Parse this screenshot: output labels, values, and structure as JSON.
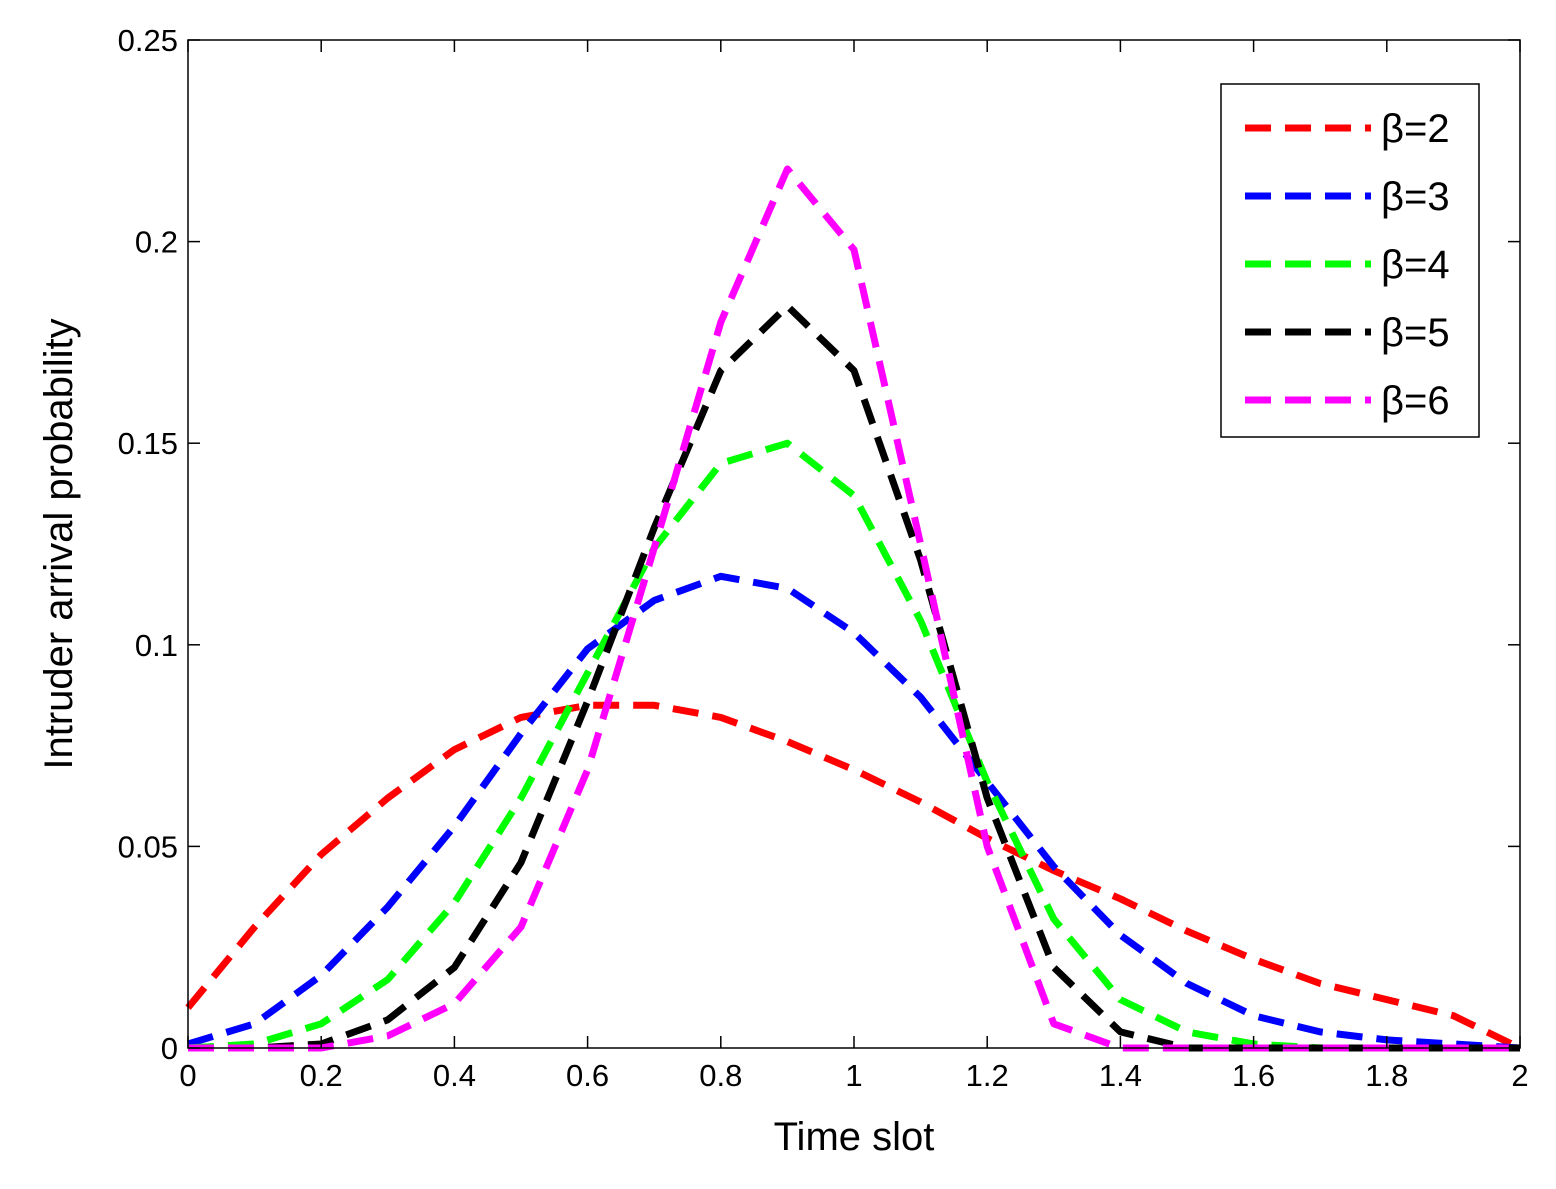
{
  "chart_data": {
    "type": "line",
    "title": "",
    "xlabel": "Time slot",
    "ylabel": "Intruder arrival probability",
    "xlim": [
      0,
      2
    ],
    "ylim": [
      0,
      0.25
    ],
    "xticks": [
      0,
      0.2,
      0.4,
      0.6,
      0.8,
      1,
      1.2,
      1.4,
      1.6,
      1.8,
      2
    ],
    "xtick_labels": [
      "0",
      "0.2",
      "0.4",
      "0.6",
      "0.8",
      "1",
      "1.2",
      "1.4",
      "1.6",
      "1.8",
      "2"
    ],
    "yticks": [
      0,
      0.05,
      0.1,
      0.15,
      0.2,
      0.25
    ],
    "ytick_labels": [
      "0",
      "0.05",
      "0.1",
      "0.15",
      "0.2",
      "0.25"
    ],
    "grid": false,
    "legend_position": "top-right",
    "line_style": "dashed",
    "x": [
      0,
      0.1,
      0.2,
      0.3,
      0.4,
      0.5,
      0.6,
      0.7,
      0.8,
      0.9,
      1.0,
      1.1,
      1.2,
      1.3,
      1.4,
      1.5,
      1.6,
      1.7,
      1.8,
      1.9,
      2.0
    ],
    "series": [
      {
        "name": "β=2",
        "color": "#ff0000",
        "values": [
          0.01,
          0.03,
          0.048,
          0.062,
          0.074,
          0.082,
          0.085,
          0.085,
          0.082,
          0.076,
          0.069,
          0.061,
          0.052,
          0.044,
          0.037,
          0.029,
          0.022,
          0.016,
          0.012,
          0.008,
          0.0
        ]
      },
      {
        "name": "β=3",
        "color": "#0000ff",
        "values": [
          0.001,
          0.006,
          0.018,
          0.035,
          0.055,
          0.078,
          0.099,
          0.111,
          0.117,
          0.114,
          0.103,
          0.087,
          0.066,
          0.045,
          0.028,
          0.016,
          0.008,
          0.004,
          0.002,
          0.001,
          0.0
        ]
      },
      {
        "name": "β=4",
        "color": "#00ff00",
        "values": [
          0.0,
          0.001,
          0.006,
          0.017,
          0.036,
          0.062,
          0.093,
          0.124,
          0.145,
          0.15,
          0.137,
          0.106,
          0.066,
          0.032,
          0.012,
          0.004,
          0.001,
          0.0,
          0.0,
          0.0,
          0.0
        ]
      },
      {
        "name": "β=5",
        "color": "#000000",
        "values": [
          0.0,
          0.0,
          0.001,
          0.007,
          0.02,
          0.046,
          0.086,
          0.129,
          0.168,
          0.184,
          0.168,
          0.121,
          0.062,
          0.02,
          0.004,
          0.0,
          0.0,
          0.0,
          0.0,
          0.0,
          0.0
        ]
      },
      {
        "name": "β=6",
        "color": "#ff00ff",
        "values": [
          0.0,
          0.0,
          0.0,
          0.003,
          0.011,
          0.03,
          0.069,
          0.124,
          0.18,
          0.218,
          0.198,
          0.125,
          0.05,
          0.006,
          0.0,
          0.0,
          0.0,
          0.0,
          0.0,
          0.0,
          0.0
        ]
      }
    ]
  }
}
